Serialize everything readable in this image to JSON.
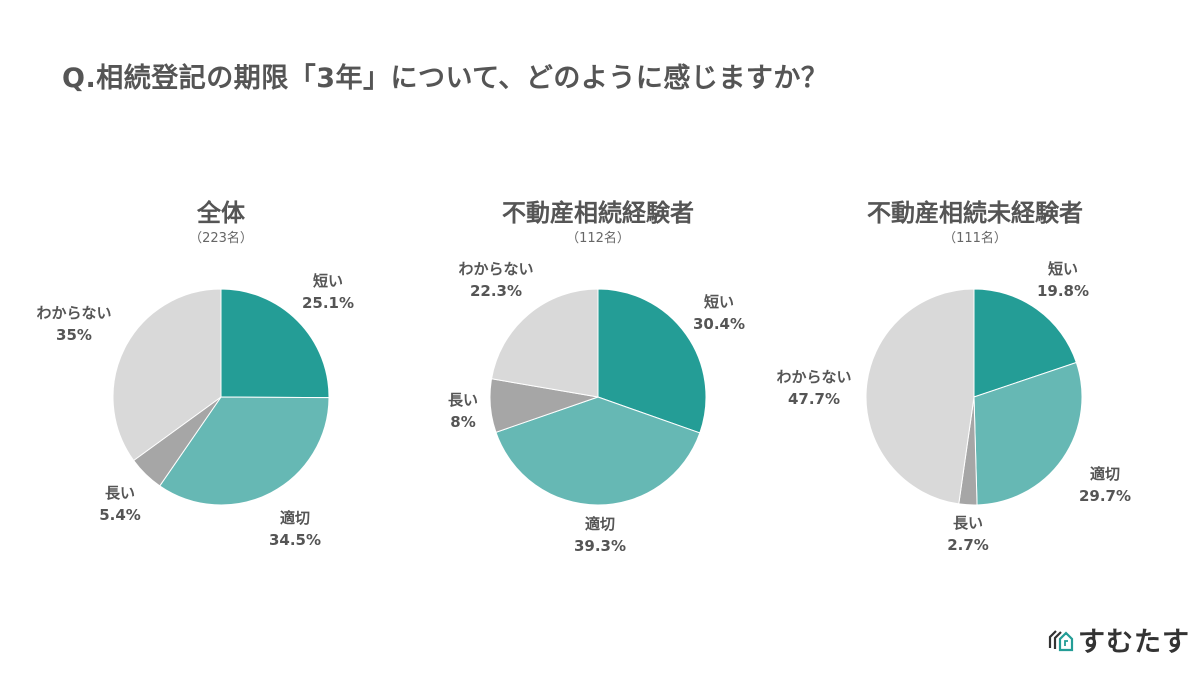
{
  "page": {
    "title": "Q.相続登記の期限「3年」について、どのように感じますか？",
    "logo": {
      "icon": "house-logo-icon",
      "text": "すむたす"
    }
  },
  "colors": {
    "short": "#249d96",
    "appropriate": "#66b8b4",
    "long": "#a6a6a6",
    "unknown": "#d9d9d9",
    "text": "#555555"
  },
  "charts": [
    {
      "title": "全体",
      "n": "（223名）",
      "labels": {
        "short": {
          "name": "短い",
          "pct": "25.1%"
        },
        "appropriate": {
          "name": "適切",
          "pct": "34.5%"
        },
        "long": {
          "name": "長い",
          "pct": "5.4%"
        },
        "unknown": {
          "name": "わからない",
          "pct": "35%"
        }
      }
    },
    {
      "title": "不動産相続経験者",
      "n": "（112名）",
      "labels": {
        "short": {
          "name": "短い",
          "pct": "30.4%"
        },
        "appropriate": {
          "name": "適切",
          "pct": "39.3%"
        },
        "long": {
          "name": "長い",
          "pct": "8%"
        },
        "unknown": {
          "name": "わからない",
          "pct": "22.3%"
        }
      }
    },
    {
      "title": "不動産相続未経験者",
      "n": "（111名）",
      "labels": {
        "short": {
          "name": "短い",
          "pct": "19.8%"
        },
        "appropriate": {
          "name": "適切",
          "pct": "29.7%"
        },
        "long": {
          "name": "長い",
          "pct": "2.7%"
        },
        "unknown": {
          "name": "わからない",
          "pct": "47.7%"
        }
      }
    }
  ],
  "chart_data": [
    {
      "type": "pie",
      "title": "全体",
      "subtitle": "（223名）",
      "categories": [
        "短い",
        "適切",
        "長い",
        "わからない"
      ],
      "values": [
        25.1,
        34.5,
        5.4,
        35.0
      ],
      "colors": [
        "#249d96",
        "#66b8b4",
        "#a6a6a6",
        "#d9d9d9"
      ],
      "start_angle": "12 o'clock, clockwise",
      "legend": "none (direct labels)"
    },
    {
      "type": "pie",
      "title": "不動産相続経験者",
      "subtitle": "（112名）",
      "categories": [
        "短い",
        "適切",
        "長い",
        "わからない"
      ],
      "values": [
        30.4,
        39.3,
        8.0,
        22.3
      ],
      "colors": [
        "#249d96",
        "#66b8b4",
        "#a6a6a6",
        "#d9d9d9"
      ],
      "start_angle": "12 o'clock, clockwise",
      "legend": "none (direct labels)"
    },
    {
      "type": "pie",
      "title": "不動産相続未経験者",
      "subtitle": "（111名）",
      "categories": [
        "短い",
        "適切",
        "長い",
        "わからない"
      ],
      "values": [
        19.8,
        29.7,
        2.7,
        47.7
      ],
      "colors": [
        "#249d96",
        "#66b8b4",
        "#a6a6a6",
        "#d9d9d9"
      ],
      "start_angle": "12 o'clock, clockwise",
      "legend": "none (direct labels)"
    }
  ]
}
